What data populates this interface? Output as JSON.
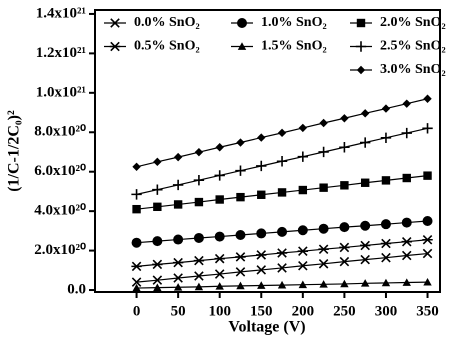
{
  "chart_data": {
    "type": "line",
    "x_label": "Voltage (V)",
    "y_label": "(1/C-1/2C₀)²",
    "x": [
      0,
      25,
      50,
      75,
      100,
      125,
      150,
      175,
      200,
      225,
      250,
      275,
      300,
      325,
      350
    ],
    "xlim": [
      -50,
      365
    ],
    "ylim": [
      -1e+19,
      1.42e+21
    ],
    "xticks": [
      0,
      50,
      100,
      150,
      200,
      250,
      300,
      350
    ],
    "yticks": [
      {
        "value": 0,
        "label": "0.0"
      },
      {
        "value": 2e+20,
        "label": "2.0x10²⁰"
      },
      {
        "value": 4e+20,
        "label": "4.0x10²⁰"
      },
      {
        "value": 6e+20,
        "label": "6.0x10²⁰"
      },
      {
        "value": 8e+20,
        "label": "8.0x10²⁰"
      },
      {
        "value": 1e+21,
        "label": "1.0x10²¹"
      },
      {
        "value": 1.2e+21,
        "label": "1.2x10²¹"
      },
      {
        "value": 1.4e+21,
        "label": "1.4x10²¹"
      }
    ],
    "legend": "upper left",
    "series": [
      {
        "name": "0.0% SnO₂",
        "color": "#000000",
        "marker": "x",
        "values": [
          4e+19,
          5e+19,
          6.1e+19,
          7.1e+19,
          8.1e+19,
          9.2e+19,
          1.02e+20,
          1.12e+20,
          1.23e+20,
          1.33e+20,
          1.44e+20,
          1.54e+20,
          1.64e+20,
          1.75e+20,
          1.85e+20
        ]
      },
      {
        "name": "0.5% SnO₂",
        "color": "#000000",
        "marker": "asterisk",
        "values": [
          1.2e+20,
          1.3e+20,
          1.39e+20,
          1.49e+20,
          1.59e+20,
          1.68e+20,
          1.78e+20,
          1.88e+20,
          1.97e+20,
          2.07e+20,
          2.16e+20,
          2.26e+20,
          2.36e+20,
          2.45e+20,
          2.55e+20
        ]
      },
      {
        "name": "1.0% SnO₂",
        "color": "#000000",
        "marker": "circle",
        "values": [
          2.4e+20,
          2.48e+20,
          2.56e+20,
          2.64e+20,
          2.71e+20,
          2.79e+20,
          2.87e+20,
          2.95e+20,
          3.03e+20,
          3.11e+20,
          3.19e+20,
          3.26e+20,
          3.34e+20,
          3.42e+20,
          3.5e+20
        ]
      },
      {
        "name": "1.5% SnO₂",
        "color": "#000000",
        "marker": "triangle",
        "values": [
          1e+19,
          1.2e+19,
          1.4e+19,
          1.6e+19,
          1.9e+19,
          2.1e+19,
          2.3e+19,
          2.5e+19,
          2.7e+19,
          2.9e+19,
          3.1e+19,
          3.4e+19,
          3.6e+19,
          3.8e+19,
          4e+19
        ]
      },
      {
        "name": "2.0% SnO₂",
        "color": "#000000",
        "marker": "square",
        "values": [
          4.1e+20,
          4.22e+20,
          4.34e+20,
          4.46e+20,
          4.59e+20,
          4.71e+20,
          4.83e+20,
          4.95e+20,
          5.07e+20,
          5.19e+20,
          5.31e+20,
          5.44e+20,
          5.56e+20,
          5.68e+20,
          5.8e+20
        ]
      },
      {
        "name": "2.5% SnO₂",
        "color": "#000000",
        "marker": "plus",
        "values": [
          4.85e+20,
          5.09e+20,
          5.33e+20,
          5.57e+20,
          5.81e+20,
          6.05e+20,
          6.29e+20,
          6.53e+20,
          6.76e+20,
          7e+20,
          7.24e+20,
          7.48e+20,
          7.72e+20,
          7.96e+20,
          8.2e+20
        ]
      },
      {
        "name": "3.0% SnO₂",
        "color": "#000000",
        "marker": "diamond",
        "values": [
          6.25e+20,
          6.5e+20,
          6.74e+20,
          6.99e+20,
          7.24e+20,
          7.48e+20,
          7.73e+20,
          7.97e+20,
          8.22e+20,
          8.47e+20,
          8.71e+20,
          8.96e+20,
          9.2e+20,
          9.45e+20,
          9.7e+20
        ]
      }
    ]
  }
}
